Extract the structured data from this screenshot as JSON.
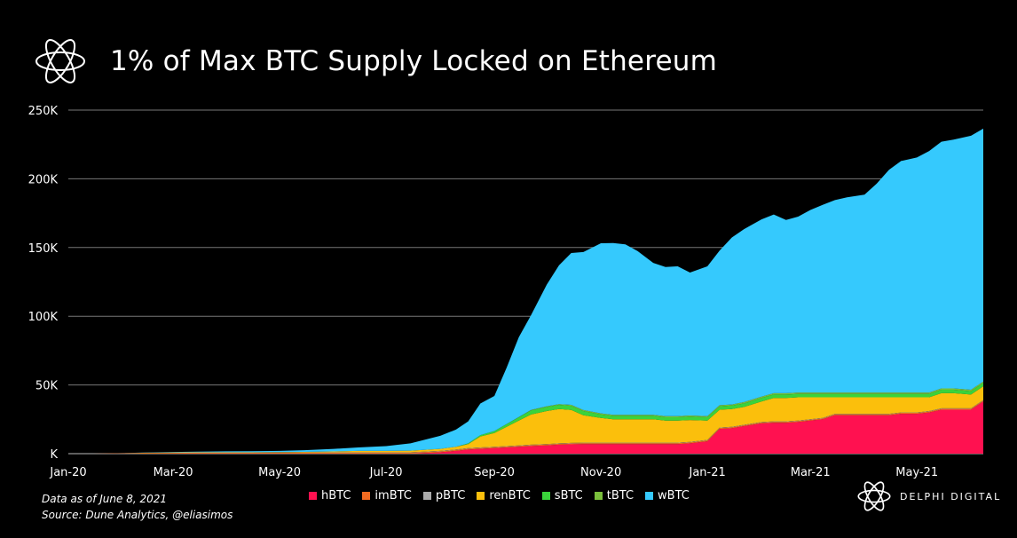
{
  "title": "1% of Max BTC Supply Locked on Ethereum",
  "footnote": {
    "line1": "Data as of June 8, 2021",
    "line2": "Source:  Dune Analytics, @eliasimos"
  },
  "brand": "DELPHI DIGITAL",
  "chart_data": {
    "type": "area",
    "stacked": true,
    "x": [
      "2020-01-01",
      "2020-01-15",
      "2020-02-01",
      "2020-02-15",
      "2020-03-01",
      "2020-03-15",
      "2020-04-01",
      "2020-04-15",
      "2020-05-01",
      "2020-05-15",
      "2020-06-01",
      "2020-06-15",
      "2020-07-01",
      "2020-07-15",
      "2020-08-01",
      "2020-08-10",
      "2020-08-17",
      "2020-08-24",
      "2020-09-01",
      "2020-09-08",
      "2020-09-15",
      "2020-09-22",
      "2020-10-01",
      "2020-10-08",
      "2020-10-15",
      "2020-10-22",
      "2020-11-01",
      "2020-11-08",
      "2020-11-15",
      "2020-11-22",
      "2020-12-01",
      "2020-12-08",
      "2020-12-15",
      "2020-12-22",
      "2021-01-01",
      "2021-01-08",
      "2021-01-15",
      "2021-01-22",
      "2021-02-01",
      "2021-02-08",
      "2021-02-15",
      "2021-02-22",
      "2021-03-01",
      "2021-03-08",
      "2021-03-15",
      "2021-03-22",
      "2021-04-01",
      "2021-04-08",
      "2021-04-15",
      "2021-04-22",
      "2021-05-01",
      "2021-05-08",
      "2021-05-15",
      "2021-05-22",
      "2021-06-01",
      "2021-06-08"
    ],
    "series": [
      {
        "name": "hBTC",
        "color": "#ff1150",
        "values": [
          0,
          0,
          0,
          0,
          0,
          0,
          0,
          0,
          0,
          0,
          0,
          0,
          0,
          0,
          1000,
          2000,
          3000,
          3500,
          4000,
          4500,
          5000,
          5500,
          6000,
          6500,
          6800,
          7000,
          7000,
          7000,
          7000,
          7000,
          7000,
          7000,
          7000,
          7500,
          9000,
          18000,
          18500,
          20000,
          22000,
          22500,
          22500,
          23000,
          24000,
          25000,
          28000,
          28000,
          28000,
          28000,
          28000,
          29000,
          29000,
          30000,
          32000,
          32000,
          32000,
          38000
        ]
      },
      {
        "name": "imBTC",
        "color": "#f26b21",
        "values": [
          0,
          0,
          300,
          500,
          600,
          700,
          700,
          700,
          700,
          700,
          700,
          700,
          700,
          700,
          700,
          700,
          700,
          700,
          700,
          700,
          700,
          700,
          700,
          700,
          700,
          700,
          700,
          700,
          700,
          700,
          700,
          700,
          700,
          700,
          700,
          700,
          700,
          700,
          700,
          700,
          700,
          700,
          700,
          700,
          700,
          700,
          700,
          700,
          700,
          700,
          700,
          700,
          700,
          700,
          700,
          700
        ]
      },
      {
        "name": "pBTC",
        "color": "#aaaaaa",
        "values": [
          0,
          0,
          0,
          0,
          0,
          0,
          0,
          0,
          100,
          200,
          300,
          300,
          300,
          300,
          300,
          300,
          300,
          300,
          300,
          300,
          300,
          300,
          300,
          300,
          300,
          300,
          300,
          300,
          300,
          300,
          300,
          300,
          300,
          300,
          300,
          300,
          300,
          300,
          300,
          300,
          300,
          300,
          300,
          300,
          300,
          300,
          300,
          300,
          300,
          300,
          300,
          300,
          300,
          300,
          300,
          300
        ]
      },
      {
        "name": "renBTC",
        "color": "#fbbf0c",
        "values": [
          0,
          0,
          0,
          200,
          300,
          300,
          300,
          300,
          300,
          400,
          600,
          1000,
          1000,
          1200,
          1500,
          2000,
          3000,
          8000,
          10000,
          14000,
          18000,
          22000,
          24000,
          25000,
          24000,
          20000,
          18000,
          17000,
          17000,
          17000,
          17000,
          16000,
          16000,
          16000,
          14000,
          13000,
          13000,
          13000,
          15000,
          17000,
          17000,
          17000,
          16000,
          15000,
          12000,
          12000,
          12000,
          12000,
          12000,
          11000,
          11000,
          10000,
          11000,
          11000,
          10000,
          10000
        ]
      },
      {
        "name": "sBTC",
        "color": "#3ad33b",
        "values": [
          0,
          0,
          0,
          0,
          0,
          0,
          0,
          0,
          0,
          0,
          0,
          0,
          0,
          0,
          0,
          0,
          500,
          1000,
          1500,
          2000,
          2500,
          3000,
          3000,
          3000,
          3000,
          3000,
          2500,
          2500,
          2500,
          2500,
          2500,
          2500,
          2500,
          2500,
          2500,
          2500,
          2500,
          2500,
          2500,
          2500,
          2500,
          2500,
          2500,
          2500,
          2500,
          2500,
          2500,
          2500,
          2500,
          2500,
          2500,
          2500,
          2500,
          2500,
          2500,
          2500
        ]
      },
      {
        "name": "tBTC",
        "color": "#7abf3b",
        "values": [
          0,
          0,
          0,
          0,
          0,
          0,
          0,
          0,
          0,
          0,
          0,
          0,
          0,
          0,
          0,
          0,
          0,
          0,
          0,
          100,
          200,
          300,
          500,
          500,
          700,
          700,
          800,
          800,
          800,
          800,
          800,
          800,
          800,
          800,
          800,
          800,
          800,
          1000,
          1000,
          1000,
          1000,
          1000,
          1000,
          1000,
          1000,
          1000,
          1000,
          1000,
          1000,
          1000,
          1000,
          1000,
          1000,
          1000,
          1000,
          1000
        ]
      },
      {
        "name": "wBTC",
        "color": "#35c9fd",
        "values": [
          0,
          0,
          100,
          200,
          300,
          400,
          700,
          800,
          900,
          1200,
          1900,
          2500,
          3500,
          5300,
          9500,
          12500,
          16000,
          23000,
          25500,
          41000,
          58000,
          69000,
          88500,
          101000,
          110500,
          115000,
          123800,
          124900,
          124000,
          119200,
          110500,
          108500,
          109000,
          104000,
          109000,
          112500,
          121500,
          125900,
          129000,
          130000,
          126000,
          128000,
          132800,
          136500,
          140000,
          142000,
          144000,
          152000,
          162000,
          168500,
          171000,
          175700,
          179500,
          181000,
          184800,
          184000
        ]
      }
    ],
    "x_tick_labels": [
      "Jan-20",
      "Mar-20",
      "May-20",
      "Jul-20",
      "Sep-20",
      "Nov-20",
      "Jan-21",
      "Mar-21",
      "May-21"
    ],
    "y_tick_labels": [
      "K",
      "50K",
      "100K",
      "150K",
      "200K",
      "250K"
    ],
    "ylim": [
      0,
      250000
    ],
    "grid": "horizontal",
    "legend": "bottom-center"
  }
}
